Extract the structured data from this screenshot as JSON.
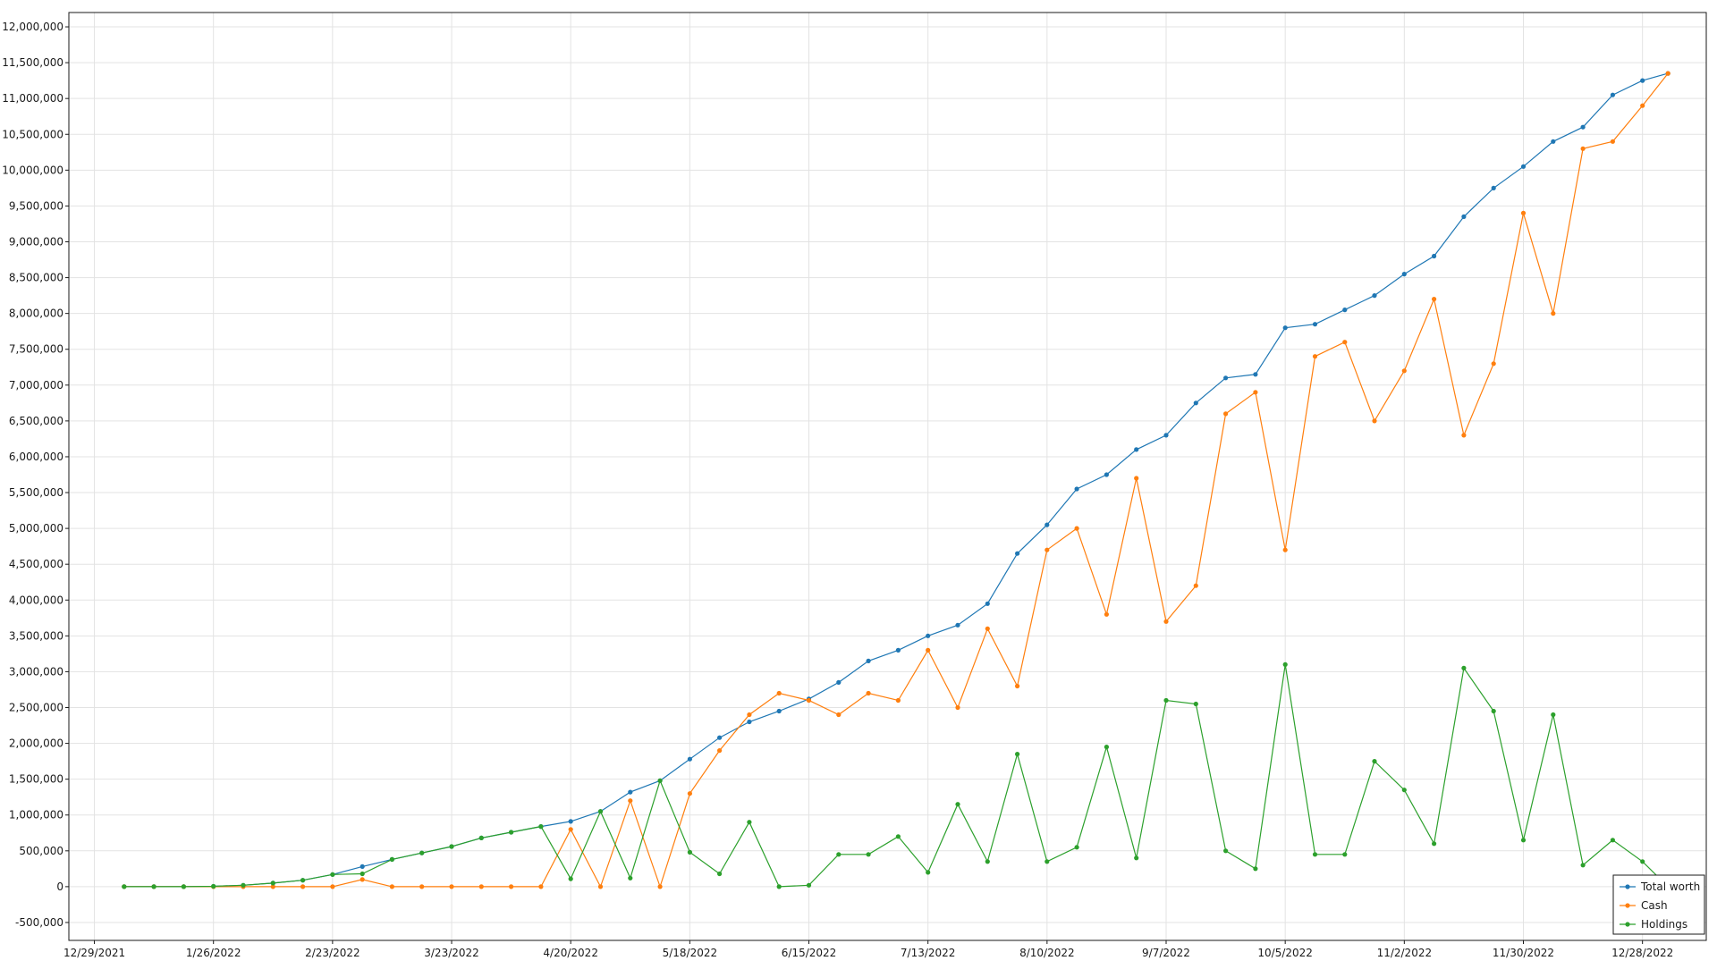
{
  "chart_data": {
    "type": "line",
    "title": "",
    "xlabel": "",
    "ylabel": "",
    "grid": true,
    "legend_position": "bottom-right",
    "x_tick_labels": [
      "12/29/2021",
      "1/26/2022",
      "2/23/2022",
      "3/23/2022",
      "4/20/2022",
      "5/18/2022",
      "6/15/2022",
      "7/13/2022",
      "8/10/2022",
      "9/7/2022",
      "10/5/2022",
      "11/2/2022",
      "11/30/2022",
      "12/28/2022"
    ],
    "y_tick_labels": [
      "-500,000",
      "0",
      "500,000",
      "1,000,000",
      "1,500,000",
      "2,000,000",
      "2,500,000",
      "3,000,000",
      "3,500,000",
      "4,000,000",
      "4,500,000",
      "5,000,000",
      "5,500,000",
      "6,000,000",
      "6,500,000",
      "7,000,000",
      "7,500,000",
      "8,000,000",
      "8,500,000",
      "9,000,000",
      "9,500,000",
      "10,000,000",
      "10,500,000",
      "11,000,000",
      "11,500,000",
      "12,000,000"
    ],
    "xlim": [
      "2021-12-23",
      "2023-01-12"
    ],
    "ylim": [
      -750000,
      12200000
    ],
    "x": [
      "2022-01-05",
      "2022-01-12",
      "2022-01-19",
      "2022-01-26",
      "2022-02-02",
      "2022-02-09",
      "2022-02-16",
      "2022-02-23",
      "2022-03-02",
      "2022-03-09",
      "2022-03-16",
      "2022-03-23",
      "2022-03-30",
      "2022-04-06",
      "2022-04-13",
      "2022-04-20",
      "2022-04-27",
      "2022-05-04",
      "2022-05-11",
      "2022-05-18",
      "2022-05-25",
      "2022-06-01",
      "2022-06-08",
      "2022-06-15",
      "2022-06-22",
      "2022-06-29",
      "2022-07-06",
      "2022-07-13",
      "2022-07-20",
      "2022-07-27",
      "2022-08-03",
      "2022-08-10",
      "2022-08-17",
      "2022-08-24",
      "2022-08-31",
      "2022-09-07",
      "2022-09-14",
      "2022-09-21",
      "2022-09-28",
      "2022-10-05",
      "2022-10-12",
      "2022-10-19",
      "2022-10-26",
      "2022-11-02",
      "2022-11-09",
      "2022-11-16",
      "2022-11-23",
      "2022-11-30",
      "2022-12-07",
      "2022-12-14",
      "2022-12-21",
      "2022-12-28",
      "2023-01-03"
    ],
    "series": [
      {
        "name": "Total worth",
        "color": "#1f77b4",
        "values": [
          0,
          0,
          0,
          5000,
          20000,
          50000,
          90000,
          170000,
          280000,
          380000,
          470000,
          560000,
          680000,
          760000,
          840000,
          910000,
          1050000,
          1320000,
          1480000,
          1780000,
          2080000,
          2300000,
          2450000,
          2620000,
          2850000,
          3150000,
          3300000,
          3500000,
          3650000,
          3950000,
          4650000,
          5050000,
          5550000,
          5750000,
          6100000,
          6300000,
          6750000,
          7100000,
          7150000,
          7800000,
          7850000,
          8050000,
          8250000,
          8550000,
          8800000,
          9350000,
          9750000,
          10050000,
          10400000,
          10600000,
          11050000,
          11250000,
          11350000
        ]
      },
      {
        "name": "Cash",
        "color": "#ff7f0e",
        "values": [
          0,
          0,
          0,
          0,
          0,
          0,
          0,
          0,
          100000,
          0,
          0,
          0,
          0,
          0,
          0,
          800000,
          0,
          1200000,
          0,
          1300000,
          1900000,
          2400000,
          2700000,
          2600000,
          2400000,
          2700000,
          2600000,
          3300000,
          2500000,
          3600000,
          2800000,
          4700000,
          5000000,
          3800000,
          5700000,
          3700000,
          4200000,
          6600000,
          6900000,
          4700000,
          7400000,
          7600000,
          6500000,
          7200000,
          8200000,
          6300000,
          7300000,
          9400000,
          8000000,
          10300000,
          10400000,
          10900000,
          11350000
        ]
      },
      {
        "name": "Holdings",
        "color": "#2ca02c",
        "values": [
          0,
          0,
          0,
          5000,
          20000,
          50000,
          90000,
          170000,
          180000,
          380000,
          470000,
          560000,
          680000,
          760000,
          840000,
          110000,
          1050000,
          120000,
          1480000,
          480000,
          180000,
          900000,
          0,
          20000,
          450000,
          450000,
          700000,
          200000,
          1150000,
          350000,
          1850000,
          350000,
          550000,
          1950000,
          400000,
          2600000,
          2550000,
          500000,
          250000,
          3100000,
          450000,
          450000,
          1750000,
          1350000,
          600000,
          3050000,
          2450000,
          650000,
          2400000,
          300000,
          650000,
          350000,
          0
        ]
      }
    ]
  },
  "legend": {
    "items": [
      {
        "label": "Total worth",
        "color": "#1f77b4"
      },
      {
        "label": "Cash",
        "color": "#ff7f0e"
      },
      {
        "label": "Holdings",
        "color": "#2ca02c"
      }
    ]
  }
}
